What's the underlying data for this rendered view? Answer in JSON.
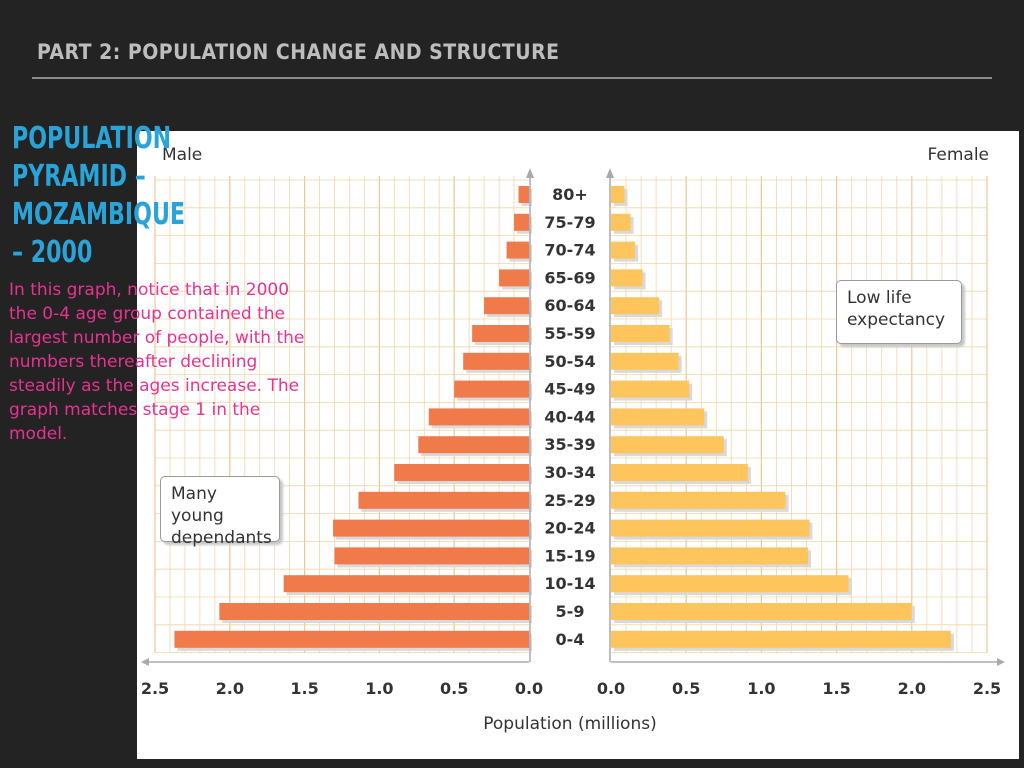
{
  "slide": {
    "header": "PART 2: POPULATION CHANGE AND STRUCTURE",
    "title": "POPULATION PYRAMID – MOZAMBIQUE – 2000",
    "body": "In this graph, notice that in 2000 the 0-4 age group contained the largest number of people, with the numbers thereafter declining steadily as the ages increase. The graph matches stage 1 in the model."
  },
  "colors": {
    "male": "#f07a4a",
    "female": "#fdc55c",
    "grid": "#f0d6a8",
    "title": "#2aa3d8",
    "body_text": "#e6338f"
  },
  "chart_data": {
    "type": "bar",
    "orientation": "horizontal-pyramid",
    "left_label": "Male",
    "right_label": "Female",
    "xlabel": "Population (millions)",
    "xlim": [
      0,
      2.5
    ],
    "xticks": [
      "0.0",
      "0.5",
      "1.0",
      "1.5",
      "2.0",
      "2.5"
    ],
    "categories": [
      "80+",
      "75-79",
      "70-74",
      "65-69",
      "60-64",
      "55-59",
      "50-54",
      "45-49",
      "40-44",
      "35-39",
      "30-34",
      "25-29",
      "20-24",
      "15-19",
      "10-14",
      "5-9",
      "0-4"
    ],
    "series": [
      {
        "name": "Male",
        "values": [
          0.07,
          0.1,
          0.15,
          0.2,
          0.3,
          0.38,
          0.44,
          0.5,
          0.67,
          0.74,
          0.9,
          1.14,
          1.31,
          1.3,
          1.64,
          2.07,
          2.37
        ]
      },
      {
        "name": "Female",
        "values": [
          0.09,
          0.13,
          0.16,
          0.21,
          0.32,
          0.39,
          0.45,
          0.52,
          0.62,
          0.75,
          0.91,
          1.16,
          1.32,
          1.31,
          1.58,
          2.0,
          2.26
        ]
      }
    ],
    "annotations": [
      "Many young dependants",
      "Low life expectancy"
    ],
    "grid": true
  }
}
